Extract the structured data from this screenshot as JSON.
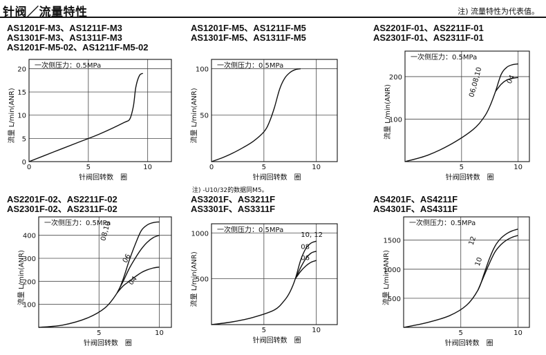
{
  "header": {
    "title": "针阀／流量特性",
    "note": "注) 流量特性为代表值。"
  },
  "mid_note": "注) -U10/32的数据同M5。",
  "chart_data": [
    {
      "id": "c1",
      "type": "line",
      "models": [
        "AS1201F-M3、AS1211F-M3",
        "AS1301F-M3、AS1311F-M3",
        "AS1201F-M5-02、AS1211F-M5-02"
      ],
      "pressure_label": "一次侧压力：0.5MPa",
      "xlabel": "针阀回转数　圈",
      "ylabel": "流量 L/min(ANR)",
      "xlim": [
        0,
        12
      ],
      "ylim": [
        0,
        22
      ],
      "xticks": [
        0,
        5,
        10
      ],
      "yticks": [
        0,
        5,
        10,
        15,
        20
      ],
      "series": [
        {
          "label": "",
          "x": [
            0,
            2,
            4,
            6,
            8,
            8.5,
            8.8,
            9,
            9.3,
            9.6
          ],
          "y": [
            0,
            2,
            4,
            6,
            8.4,
            9.2,
            12,
            16,
            18.5,
            19
          ]
        }
      ]
    },
    {
      "id": "c2",
      "type": "line",
      "models": [
        "AS1201F-M5、AS1211F-M5",
        "AS1301F-M5、AS1311F-M5"
      ],
      "pressure_label": "一次侧压力：0.5MPa",
      "xlabel": "针阀回转数　圈",
      "ylabel": "流量 L/min(ANR)",
      "xlim": [
        0,
        12
      ],
      "ylim": [
        0,
        110
      ],
      "xticks": [
        0,
        5,
        10
      ],
      "yticks": [
        50,
        100
      ],
      "series": [
        {
          "label": "",
          "x": [
            0,
            1,
            2,
            3,
            4,
            5,
            5.5,
            6,
            6.5,
            7,
            7.5,
            8,
            8.5
          ],
          "y": [
            0,
            4,
            9,
            15,
            22,
            32,
            42,
            58,
            78,
            90,
            96,
            99,
            100
          ]
        }
      ]
    },
    {
      "id": "c3",
      "type": "line",
      "models": [
        "AS2201F-01、AS2211F-01",
        "AS2301F-01、AS2311F-01"
      ],
      "pressure_label": "一次侧压力：0.5MPa",
      "xlabel": "针阀回转数　圈",
      "ylabel": "流量 L/min(ANR)",
      "xlim": [
        0,
        11
      ],
      "ylim": [
        0,
        260
      ],
      "xticks": [
        5,
        10
      ],
      "yticks": [
        100,
        200
      ],
      "series": [
        {
          "label": "06,08,10",
          "x": [
            0,
            2,
            4,
            6,
            7,
            7.5,
            8,
            8.5,
            9,
            9.5,
            10
          ],
          "y": [
            0,
            15,
            40,
            75,
            105,
            130,
            165,
            205,
            222,
            228,
            230
          ]
        },
        {
          "label": "04",
          "x": [
            8,
            8.5,
            9,
            9.5,
            10
          ],
          "y": [
            165,
            182,
            192,
            196,
            198
          ]
        }
      ]
    },
    {
      "id": "c4",
      "type": "line",
      "models": [
        "AS2201F-02、AS2211F-02",
        "AS2301F-02、AS2311F-02"
      ],
      "pressure_label": "一次侧压力：0.5MPa",
      "xlabel": "针阀回转数　圈",
      "ylabel": "流量 L/min(ANR)",
      "xlim": [
        0,
        11
      ],
      "ylim": [
        0,
        480
      ],
      "xticks": [
        5,
        10
      ],
      "yticks": [
        100,
        200,
        300,
        400
      ],
      "series": [
        {
          "label": "08,10",
          "x": [
            0,
            2,
            4,
            5.5,
            6.5,
            7,
            7.5,
            8,
            8.5,
            9,
            9.5,
            10
          ],
          "y": [
            0,
            10,
            40,
            85,
            150,
            210,
            290,
            360,
            420,
            445,
            455,
            458
          ]
        },
        {
          "label": "06",
          "x": [
            6.5,
            7,
            7.5,
            8,
            8.5,
            9,
            9.5,
            10
          ],
          "y": [
            150,
            200,
            255,
            300,
            340,
            370,
            390,
            400
          ]
        },
        {
          "label": "04",
          "x": [
            6.5,
            7,
            7.5,
            8,
            8.5,
            9,
            9.5,
            10
          ],
          "y": [
            150,
            180,
            200,
            220,
            238,
            250,
            258,
            262
          ]
        }
      ]
    },
    {
      "id": "c5",
      "type": "line",
      "models": [
        "AS3201F、AS3211F",
        "AS3301F、AS3311F"
      ],
      "pressure_label": "一次侧压力：0.5MPa",
      "xlabel": "针阀回转数　圈",
      "ylabel": "流量 L/min(ANR)",
      "xlim": [
        0,
        12
      ],
      "ylim": [
        0,
        1100
      ],
      "xticks": [
        5,
        10
      ],
      "yticks": [
        500,
        1000
      ],
      "series": [
        {
          "label": "10, 12",
          "x": [
            0,
            2,
            4,
            6,
            7,
            7.5,
            8,
            8.5,
            9,
            9.5,
            10
          ],
          "y": [
            0,
            30,
            80,
            160,
            270,
            360,
            500,
            700,
            830,
            890,
            910
          ]
        },
        {
          "label": "08",
          "x": [
            8,
            8.5,
            9,
            9.5,
            10
          ],
          "y": [
            500,
            620,
            720,
            780,
            800
          ]
        },
        {
          "label": "06",
          "x": [
            8,
            8.5,
            9,
            9.5,
            10
          ],
          "y": [
            500,
            580,
            640,
            680,
            700
          ]
        }
      ]
    },
    {
      "id": "c6",
      "type": "line",
      "models": [
        "AS4201F、AS4211F",
        "AS4301F、AS4311F"
      ],
      "pressure_label": "一次侧压力：0.5MPa",
      "xlabel": "针阀回转数　圈",
      "ylabel": "流量 L/min(ANR)",
      "xlim": [
        0,
        11
      ],
      "ylim": [
        0,
        1900
      ],
      "xticks": [
        5,
        10
      ],
      "yticks": [
        500,
        1000,
        1500
      ],
      "series": [
        {
          "label": "12",
          "x": [
            0,
            2,
            4,
            5.5,
            6.5,
            7,
            7.5,
            8,
            8.5,
            9,
            9.5,
            10
          ],
          "y": [
            0,
            80,
            200,
            380,
            640,
            900,
            1180,
            1400,
            1530,
            1610,
            1660,
            1690
          ]
        },
        {
          "label": "10",
          "x": [
            6.5,
            7,
            7.5,
            8,
            8.5,
            9,
            9.5,
            10
          ],
          "y": [
            640,
            870,
            1100,
            1300,
            1420,
            1500,
            1550,
            1580
          ]
        }
      ]
    }
  ]
}
